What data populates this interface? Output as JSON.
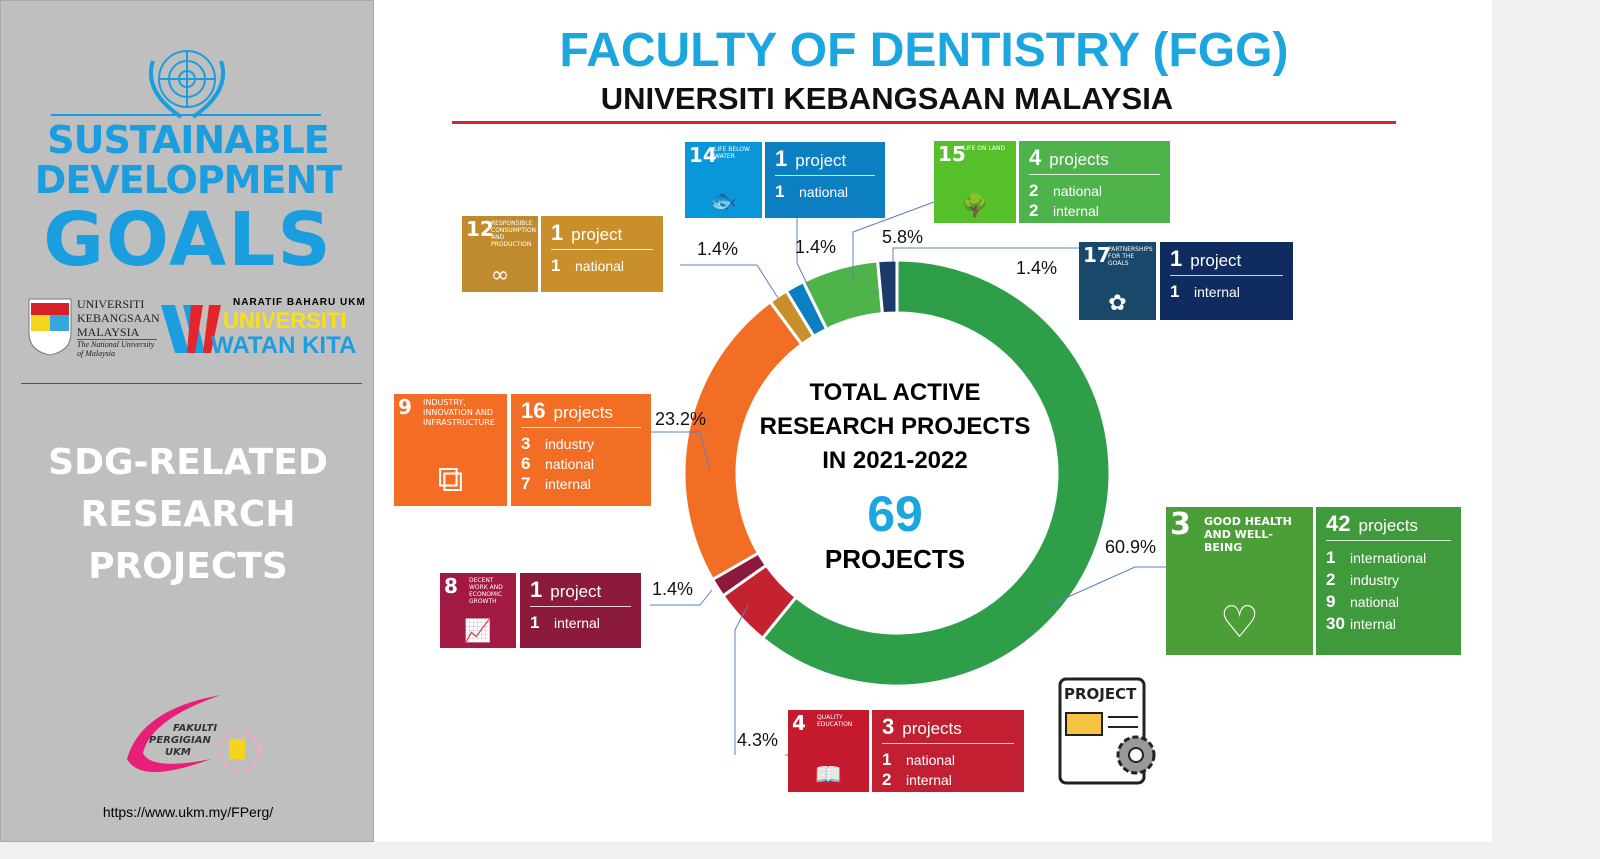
{
  "sidebar": {
    "sdg_line1": "SUSTAINABLE",
    "sdg_line2": "DEVELOPMENT",
    "sdg_line3": "GOALS",
    "ukm_name": [
      "UNIVERSITI",
      "KEBANGSAAN",
      "MALAYSIA"
    ],
    "ukm_sub": "The National University of Malaysia",
    "wk_tag": "NARATIF BAHARU UKM",
    "wk_line1": "UNIVERSITI",
    "wk_line2": "WATAN KITA",
    "title": [
      "SDG-RELATED",
      "RESEARCH",
      "PROJECTS"
    ],
    "faculty_logo": "FAKULTI PERGIGIAN UKM",
    "url": "https://www.ukm.my/FPerg/"
  },
  "header": {
    "title": "FACULTY OF DENTISTRY (FGG)",
    "subtitle": "UNIVERSITI KEBANGSAAN MALAYSIA"
  },
  "center": {
    "line1": "TOTAL ACTIVE",
    "line2": "RESEARCH PROJECTS",
    "line3": "IN 2021-2022",
    "total": "69",
    "unit": "PROJECTS"
  },
  "doc_icon_label": "PROJECT",
  "goals": [
    {
      "num": "3",
      "name": "GOOD HEALTH AND WELL-BEING",
      "count": "42",
      "unit": "projects",
      "rows": [
        [
          "1",
          "international"
        ],
        [
          "2",
          "industry"
        ],
        [
          "9",
          "national"
        ],
        [
          "30",
          "internal"
        ]
      ],
      "pct": "60.9%",
      "color": "#4c9f38",
      "info_color": "#3f9a3b"
    },
    {
      "num": "4",
      "name": "QUALITY EDUCATION",
      "count": "3",
      "unit": "projects",
      "rows": [
        [
          "1",
          "national"
        ],
        [
          "2",
          "internal"
        ]
      ],
      "pct": "4.3%",
      "color": "#c5192d",
      "info_color": "#c21f33"
    },
    {
      "num": "8",
      "name": "DECENT WORK AND ECONOMIC GROWTH",
      "count": "1",
      "unit": "project",
      "rows": [
        [
          "1",
          "internal"
        ]
      ],
      "pct": "1.4%",
      "color": "#a21942",
      "info_color": "#8b1a3c"
    },
    {
      "num": "9",
      "name": "INDUSTRY, INNOVATION AND INFRASTRUCTURE",
      "count": "16",
      "unit": "projects",
      "rows": [
        [
          "3",
          "industry"
        ],
        [
          "6",
          "national"
        ],
        [
          "7",
          "internal"
        ]
      ],
      "pct": "23.2%",
      "color": "#f36d25",
      "info_color": "#f26e24"
    },
    {
      "num": "12",
      "name": "RESPONSIBLE CONSUMPTION AND PRODUCTION",
      "count": "1",
      "unit": "project",
      "rows": [
        [
          "1",
          "national"
        ]
      ],
      "pct": "1.4%",
      "color": "#bf8b2e",
      "info_color": "#c98f2b"
    },
    {
      "num": "14",
      "name": "LIFE BELOW WATER",
      "count": "1",
      "unit": "project",
      "rows": [
        [
          "1",
          "national"
        ]
      ],
      "pct": "1.4%",
      "color": "#0a97d9",
      "info_color": "#0b7fc2"
    },
    {
      "num": "15",
      "name": "LIFE ON LAND",
      "count": "4",
      "unit": "projects",
      "rows": [
        [
          "2",
          "national"
        ],
        [
          "2",
          "internal"
        ]
      ],
      "pct": "5.8%",
      "color": "#56c02b",
      "info_color": "#4db34a"
    },
    {
      "num": "17",
      "name": "PARTNERSHIPS FOR THE GOALS",
      "count": "1",
      "unit": "project",
      "rows": [
        [
          "1",
          "internal"
        ]
      ],
      "pct": "1.4%",
      "color": "#19486a",
      "info_color": "#0f2b60"
    }
  ],
  "chart_data": {
    "type": "pie",
    "title": "TOTAL ACTIVE RESEARCH PROJECTS IN 2021-2022",
    "total": 69,
    "categories": [
      "SDG 3",
      "SDG 4",
      "SDG 8",
      "SDG 9",
      "SDG 12",
      "SDG 14",
      "SDG 15",
      "SDG 17"
    ],
    "values": [
      42,
      3,
      1,
      16,
      1,
      1,
      4,
      1
    ],
    "percent_labels": [
      "60.9%",
      "4.3%",
      "1.4%",
      "23.2%",
      "1.4%",
      "1.4%",
      "5.8%",
      "1.4%"
    ],
    "colors": [
      "#2e9e48",
      "#c5222f",
      "#8b1a3c",
      "#f26e24",
      "#c98f2b",
      "#0b7fc2",
      "#4db34a",
      "#1b3a6b"
    ],
    "donut": true
  }
}
